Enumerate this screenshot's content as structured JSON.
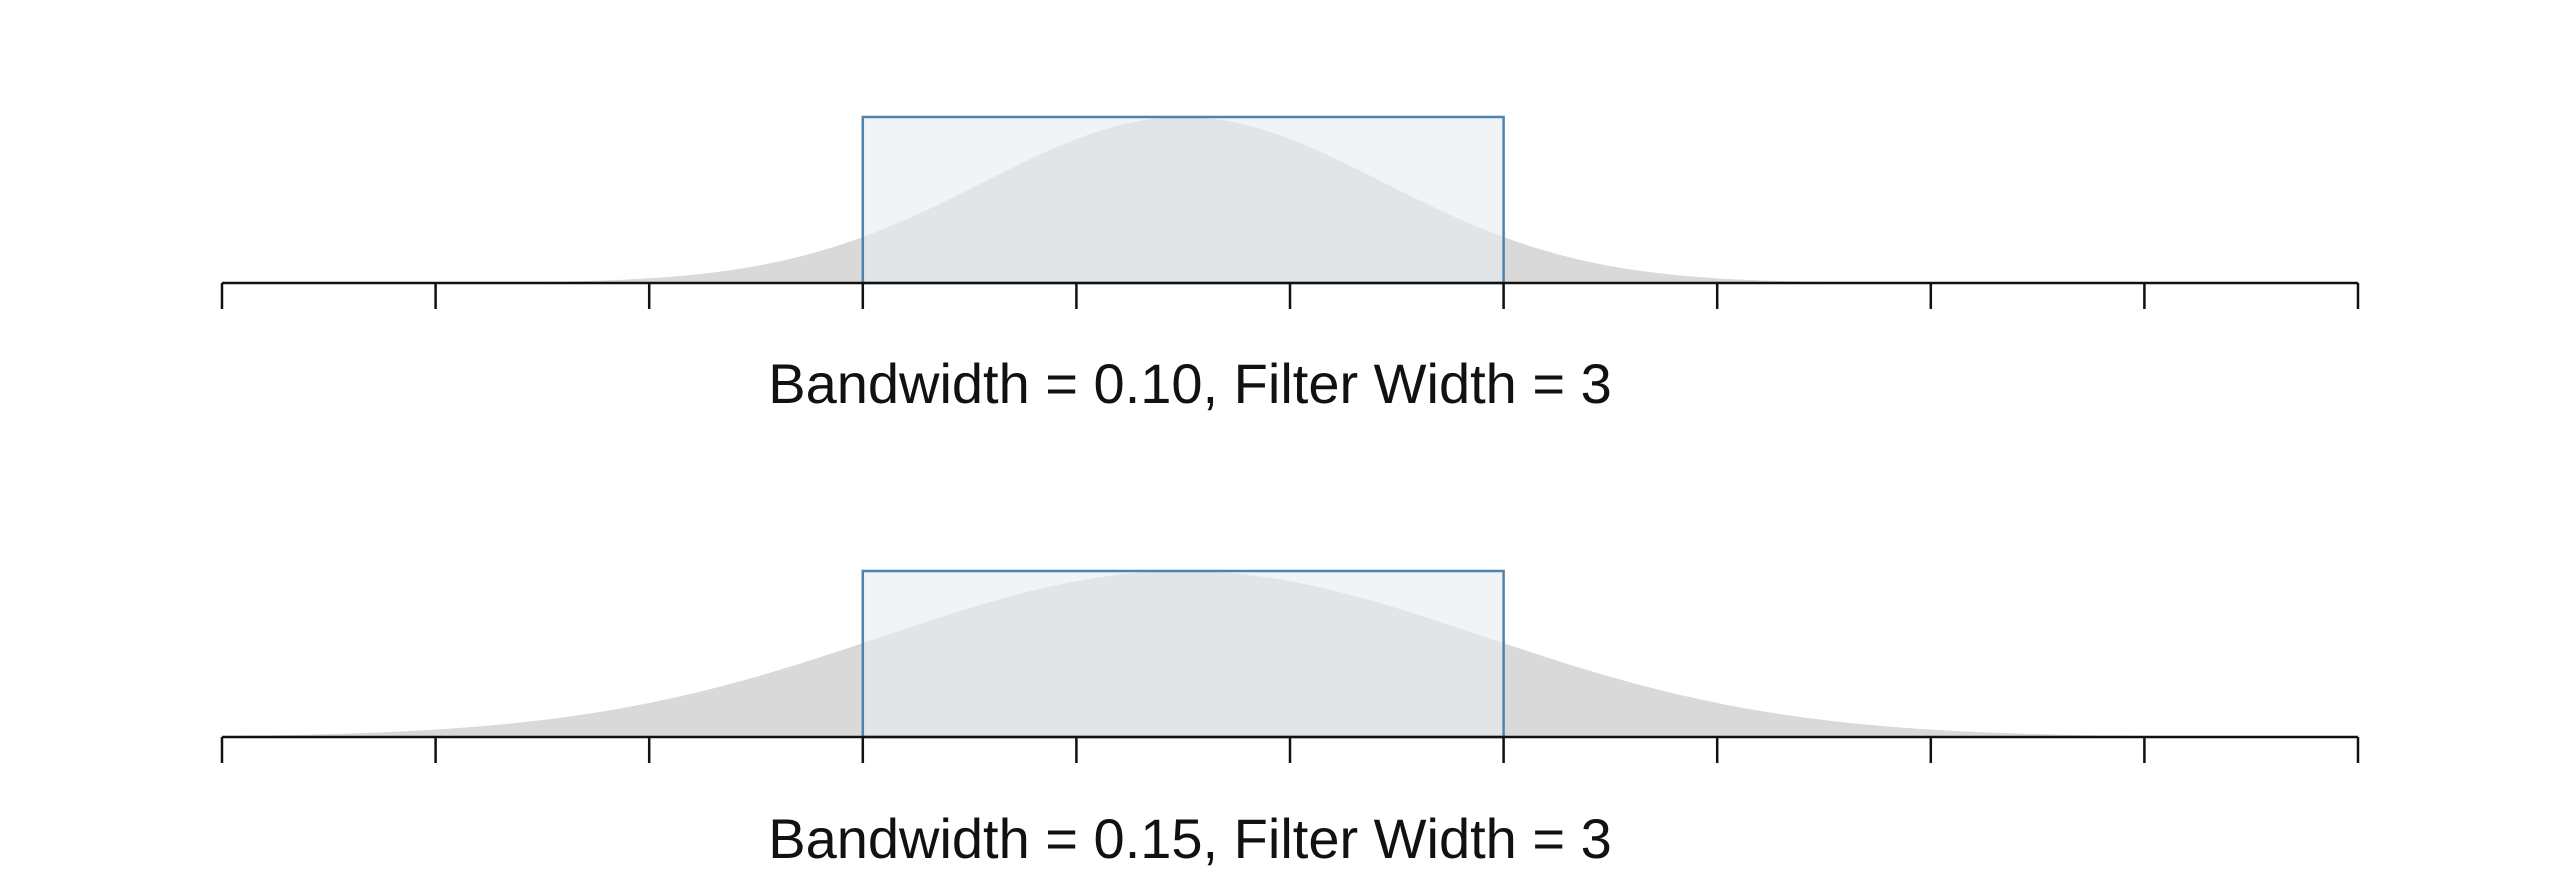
{
  "colors": {
    "background": "#ffffff",
    "kernel_fill": "#d9d9d9",
    "filter_fill": "#e6ecf2",
    "filter_stroke": "#4f83ad",
    "axis": "#111111"
  },
  "panels": [
    {
      "caption": "Bandwidth = 0.10, Filter Width = 3",
      "bandwidth": 0.1,
      "filter_width": 3
    },
    {
      "caption": "Bandwidth = 0.15, Filter Width = 3",
      "bandwidth": 0.15,
      "filter_width": 3
    }
  ],
  "axis": {
    "tick_count": 11,
    "filter_start_tick": 3,
    "filter_end_tick": 6
  }
}
